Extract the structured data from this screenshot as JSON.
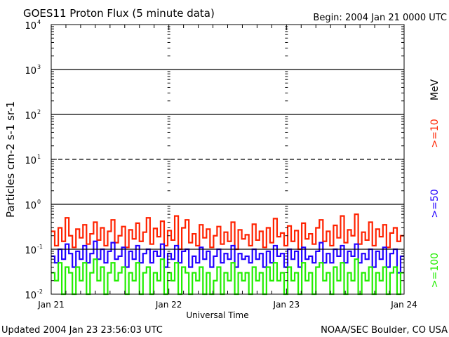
{
  "chart_data": {
    "type": "line",
    "title": "GOES11 Proton Flux (5 minute data)",
    "begin": "Begin: 2004 Jan 21 0000 UTC",
    "xlabel": "Universal Time",
    "ylabel": "Particles cm-2 s-1 sr-1",
    "y_scale": "log",
    "ylim": [
      0.01,
      10000
    ],
    "y_ticks": [
      {
        "base": "10",
        "exp": "4",
        "value": 10000
      },
      {
        "base": "10",
        "exp": "3",
        "value": 1000
      },
      {
        "base": "10",
        "exp": "2",
        "value": 100
      },
      {
        "base": "10",
        "exp": "1",
        "value": 10
      },
      {
        "base": "10",
        "exp": "0",
        "value": 1
      },
      {
        "base": "10",
        "exp": "-1",
        "value": 0.1
      },
      {
        "base": "10",
        "exp": "-2",
        "value": 0.01
      }
    ],
    "x_ticks": [
      "Jan 21",
      "Jan 22",
      "Jan 23",
      "Jan 24"
    ],
    "xlim_days": [
      0,
      3
    ],
    "threshold_lines": [
      {
        "value": 1000,
        "style": "solid"
      },
      {
        "value": 100,
        "style": "solid"
      },
      {
        "value": 10,
        "style": "dashed"
      },
      {
        "value": 1,
        "style": "solid"
      },
      {
        "value": 0.1,
        "style": "solid"
      }
    ],
    "unit_label": "MeV",
    "series": [
      {
        "name": ">=10",
        "color": "#ff2200",
        "values": [
          0.25,
          0.12,
          0.3,
          0.15,
          0.5,
          0.2,
          0.11,
          0.28,
          0.18,
          0.35,
          0.13,
          0.22,
          0.4,
          0.16,
          0.3,
          0.12,
          0.25,
          0.45,
          0.14,
          0.2,
          0.32,
          0.11,
          0.27,
          0.17,
          0.38,
          0.15,
          0.24,
          0.5,
          0.13,
          0.29,
          0.19,
          0.42,
          0.12,
          0.26,
          0.16,
          0.55,
          0.1,
          0.3,
          0.45,
          0.14,
          0.22,
          0.12,
          0.35,
          0.18,
          0.28,
          0.11,
          0.2,
          0.32,
          0.13,
          0.24,
          0.15,
          0.4,
          0.1,
          0.27,
          0.17,
          0.21,
          0.12,
          0.36,
          0.16,
          0.25,
          0.11,
          0.3,
          0.14,
          0.48,
          0.19,
          0.23,
          0.12,
          0.33,
          0.15,
          0.26,
          0.1,
          0.38,
          0.17,
          0.22,
          0.13,
          0.3,
          0.45,
          0.15,
          0.25,
          0.12,
          0.34,
          0.18,
          0.55,
          0.14,
          0.27,
          0.2,
          0.6,
          0.13,
          0.24,
          0.16,
          0.4,
          0.12,
          0.28,
          0.19,
          0.35,
          0.11,
          0.23,
          0.3,
          0.15,
          0.2
        ]
      },
      {
        "name": ">=50",
        "color": "#2200ff",
        "values": [
          0.07,
          0.05,
          0.1,
          0.06,
          0.13,
          0.08,
          0.04,
          0.09,
          0.06,
          0.12,
          0.05,
          0.08,
          0.15,
          0.06,
          0.1,
          0.05,
          0.09,
          0.14,
          0.06,
          0.07,
          0.11,
          0.04,
          0.09,
          0.06,
          0.12,
          0.05,
          0.08,
          0.1,
          0.05,
          0.09,
          0.07,
          0.13,
          0.04,
          0.08,
          0.06,
          0.12,
          0.05,
          0.09,
          0.1,
          0.04,
          0.07,
          0.05,
          0.11,
          0.06,
          0.09,
          0.04,
          0.07,
          0.1,
          0.05,
          0.08,
          0.06,
          0.12,
          0.04,
          0.08,
          0.06,
          0.07,
          0.05,
          0.1,
          0.06,
          0.08,
          0.04,
          0.09,
          0.05,
          0.12,
          0.07,
          0.08,
          0.04,
          0.1,
          0.06,
          0.09,
          0.04,
          0.11,
          0.06,
          0.07,
          0.05,
          0.09,
          0.14,
          0.05,
          0.08,
          0.05,
          0.1,
          0.07,
          0.12,
          0.05,
          0.09,
          0.07,
          0.13,
          0.05,
          0.08,
          0.06,
          0.1,
          0.04,
          0.09,
          0.06,
          0.11,
          0.04,
          0.08,
          0.1,
          0.03,
          0.07
        ]
      },
      {
        "name": ">=100",
        "color": "#22ee00",
        "values": [
          0.03,
          0.02,
          0.05,
          0.01,
          0.04,
          0.03,
          0.01,
          0.04,
          0.02,
          0.05,
          0.01,
          0.03,
          0.06,
          0.02,
          0.04,
          0.01,
          0.03,
          0.05,
          0.02,
          0.03,
          0.04,
          0.01,
          0.03,
          0.02,
          0.05,
          0.01,
          0.03,
          0.04,
          0.01,
          0.03,
          0.02,
          0.06,
          0.01,
          0.03,
          0.02,
          0.05,
          0.01,
          0.04,
          0.03,
          0.01,
          0.03,
          0.02,
          0.04,
          0.01,
          0.03,
          0.01,
          0.02,
          0.04,
          0.01,
          0.03,
          0.02,
          0.05,
          0.01,
          0.03,
          0.02,
          0.03,
          0.01,
          0.04,
          0.02,
          0.03,
          0.01,
          0.04,
          0.02,
          0.05,
          0.02,
          0.03,
          0.01,
          0.04,
          0.02,
          0.03,
          0.01,
          0.05,
          0.02,
          0.03,
          0.01,
          0.04,
          0.05,
          0.02,
          0.03,
          0.01,
          0.04,
          0.02,
          0.05,
          0.01,
          0.03,
          0.02,
          0.06,
          0.01,
          0.03,
          0.02,
          0.04,
          0.01,
          0.03,
          0.02,
          0.04,
          0.01,
          0.03,
          0.04,
          0.01,
          0.03
        ]
      }
    ]
  },
  "footer": {
    "updated": "Updated 2004 Jan 23 23:56:03 UTC",
    "source": "NOAA/SEC Boulder, CO USA"
  }
}
